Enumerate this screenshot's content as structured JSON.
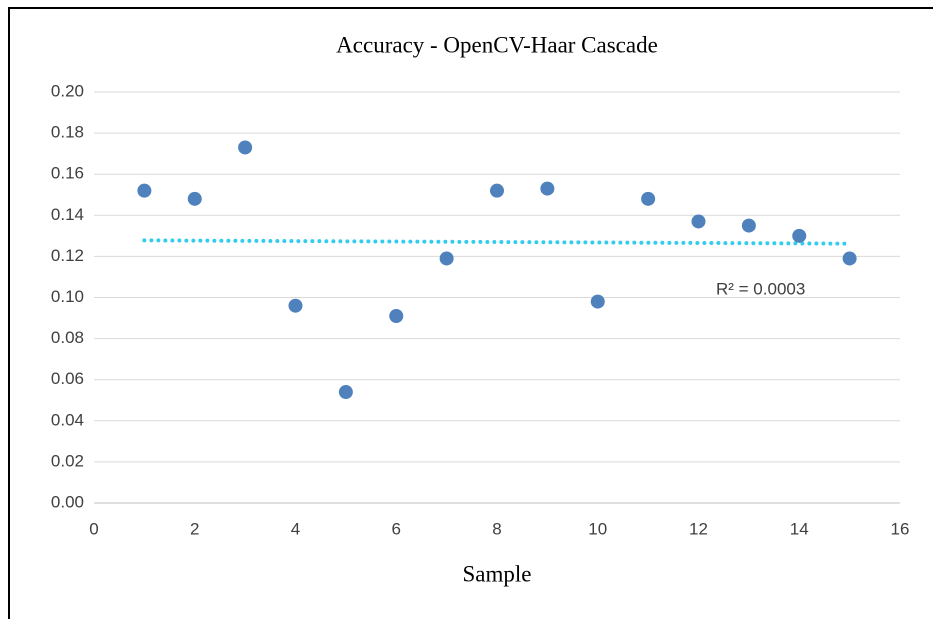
{
  "chart_data": {
    "type": "scatter",
    "title": "Accuracy - OpenCV-Haar Cascade",
    "x_label": "Sample",
    "x": [
      1,
      2,
      3,
      4,
      5,
      6,
      7,
      8,
      9,
      10,
      11,
      12,
      13,
      14,
      15
    ],
    "values": [
      0.152,
      0.148,
      0.173,
      0.096,
      0.054,
      0.091,
      0.119,
      0.152,
      0.153,
      0.098,
      0.148,
      0.137,
      0.135,
      0.13,
      0.119
    ],
    "color": "#4f81bd",
    "trendline": {
      "x": [
        1,
        15
      ],
      "values": [
        0.1278,
        0.1262
      ],
      "color": "#33ccee"
    },
    "annotation": "R² = 0.0003",
    "xlim": [
      0,
      16
    ],
    "xticks": [
      0,
      2,
      4,
      6,
      8,
      10,
      12,
      14,
      16
    ],
    "ylim": [
      0,
      0.2
    ],
    "yticks": [
      {
        "value": 0,
        "label": "0.00"
      },
      {
        "value": 0.02,
        "label": "0.02"
      },
      {
        "value": 0.04,
        "label": "0.04"
      },
      {
        "value": 0.06,
        "label": "0.06"
      },
      {
        "value": 0.08,
        "label": "0.08"
      },
      {
        "value": 0.1,
        "label": "0.10"
      },
      {
        "value": 0.12,
        "label": "0.12"
      },
      {
        "value": 0.14,
        "label": "0.14"
      },
      {
        "value": 0.16,
        "label": "0.16"
      },
      {
        "value": 0.18,
        "label": "0.18"
      },
      {
        "value": 0.2,
        "label": "0.20"
      }
    ],
    "grid": true
  }
}
